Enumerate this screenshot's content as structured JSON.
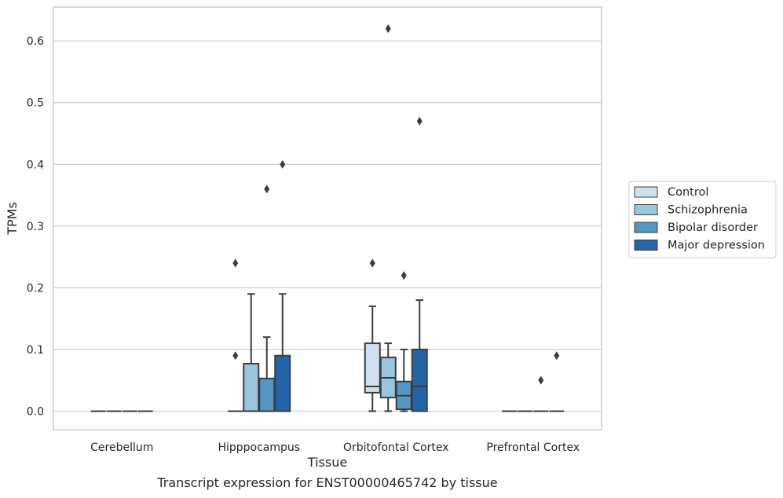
{
  "caption": "Transcript expression for ENST00000465742 by tissue",
  "chart_data": {
    "type": "box",
    "xlabel": "Tissue",
    "ylabel": "TPMs",
    "ylim": [
      -0.03,
      0.655
    ],
    "yticks": [
      0.0,
      0.1,
      0.2,
      0.3,
      0.4,
      0.5,
      0.6
    ],
    "ytick_labels": [
      "0.0",
      "0.1",
      "0.2",
      "0.3",
      "0.4",
      "0.5",
      "0.6"
    ],
    "grid": "horizontal",
    "legend_position": "right",
    "categories": [
      "Cerebellum",
      "Hipppocampus",
      "Orbitofontal Cortex",
      "Prefrontal Cortex"
    ],
    "series": [
      {
        "name": "Control",
        "color": "#d0e0f0",
        "boxes": [
          {
            "q1": 0,
            "median": 0,
            "q3": 0,
            "whisker_low": 0,
            "whisker_high": 0,
            "outliers": []
          },
          {
            "q1": 0,
            "median": 0,
            "q3": 0,
            "whisker_low": 0,
            "whisker_high": 0,
            "outliers": [
              0.09,
              0.24
            ]
          },
          {
            "q1": 0.03,
            "median": 0.04,
            "q3": 0.11,
            "whisker_low": 0,
            "whisker_high": 0.17,
            "outliers": [
              0.24
            ]
          },
          {
            "q1": 0,
            "median": 0,
            "q3": 0,
            "whisker_low": 0,
            "whisker_high": 0,
            "outliers": []
          }
        ]
      },
      {
        "name": "Schizophrenia",
        "color": "#9ac6df",
        "boxes": [
          {
            "q1": 0,
            "median": 0,
            "q3": 0,
            "whisker_low": 0,
            "whisker_high": 0,
            "outliers": []
          },
          {
            "q1": 0,
            "median": 0,
            "q3": 0.077,
            "whisker_low": 0,
            "whisker_high": 0.19,
            "outliers": []
          },
          {
            "q1": 0.022,
            "median": 0.054,
            "q3": 0.087,
            "whisker_low": 0,
            "whisker_high": 0.11,
            "outliers": [
              0.62
            ]
          },
          {
            "q1": 0,
            "median": 0,
            "q3": 0,
            "whisker_low": 0,
            "whisker_high": 0,
            "outliers": []
          }
        ]
      },
      {
        "name": "Bipolar disorder",
        "color": "#5596c5",
        "boxes": [
          {
            "q1": 0,
            "median": 0,
            "q3": 0,
            "whisker_low": 0,
            "whisker_high": 0,
            "outliers": []
          },
          {
            "q1": 0,
            "median": 0,
            "q3": 0.053,
            "whisker_low": 0,
            "whisker_high": 0.12,
            "outliers": [
              0.36
            ]
          },
          {
            "q1": 0.003,
            "median": 0.025,
            "q3": 0.048,
            "whisker_low": 0,
            "whisker_high": 0.1,
            "outliers": [
              0.22
            ]
          },
          {
            "q1": 0,
            "median": 0,
            "q3": 0,
            "whisker_low": 0,
            "whisker_high": 0,
            "outliers": [
              0.05
            ]
          }
        ]
      },
      {
        "name": "Major depression",
        "color": "#2464a8",
        "boxes": [
          {
            "q1": 0,
            "median": 0,
            "q3": 0,
            "whisker_low": 0,
            "whisker_high": 0,
            "outliers": []
          },
          {
            "q1": 0,
            "median": 0,
            "q3": 0.09,
            "whisker_low": 0,
            "whisker_high": 0.19,
            "outliers": [
              0.4
            ]
          },
          {
            "q1": 0,
            "median": 0.04,
            "q3": 0.1,
            "whisker_low": 0,
            "whisker_high": 0.18,
            "outliers": [
              0.47
            ]
          },
          {
            "q1": 0,
            "median": 0,
            "q3": 0,
            "whisker_low": 0,
            "whisker_high": 0,
            "outliers": [
              0.09
            ]
          }
        ]
      }
    ]
  }
}
